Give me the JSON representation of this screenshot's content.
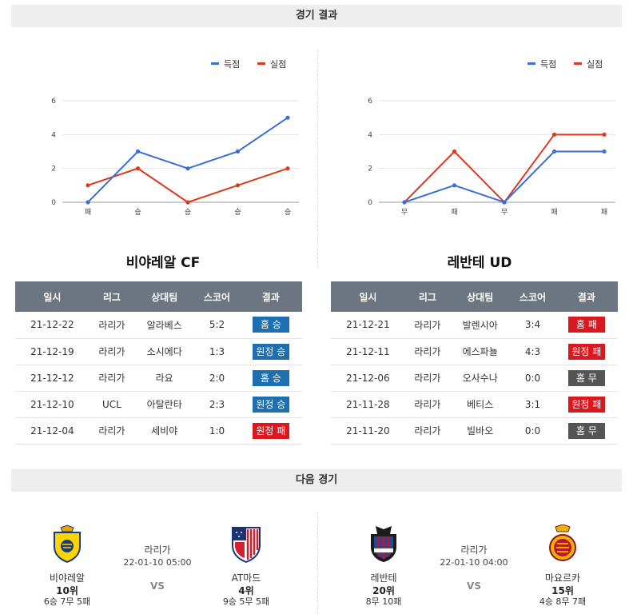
{
  "section_results": "경기 결과",
  "section_next": "다음 경기",
  "legend": {
    "scored": "득점",
    "conceded": "실점"
  },
  "colors": {
    "scored": "#3a6fd8",
    "conceded": "#db3a1e",
    "win": "#1e6fb0",
    "loss": "#d9191f",
    "draw": "#555555",
    "header_bg": "#6b7680"
  },
  "table_headers": [
    "일시",
    "리그",
    "상대팀",
    "스코어",
    "결과"
  ],
  "chart_data": [
    {
      "type": "line",
      "categories": [
        "패",
        "승",
        "승",
        "승",
        "승"
      ],
      "ylim": [
        0,
        6
      ],
      "yticks": [
        0,
        2,
        4,
        6
      ],
      "grid": true,
      "legend_position": "top-right",
      "series": [
        {
          "name": "득점",
          "values": [
            0,
            3,
            2,
            3,
            5
          ]
        },
        {
          "name": "실점",
          "values": [
            1,
            2,
            0,
            1,
            2
          ]
        }
      ]
    },
    {
      "type": "line",
      "categories": [
        "무",
        "패",
        "무",
        "패",
        "패"
      ],
      "ylim": [
        0,
        6
      ],
      "yticks": [
        0,
        2,
        4,
        6
      ],
      "grid": true,
      "legend_position": "top-right",
      "series": [
        {
          "name": "득점",
          "values": [
            0,
            1,
            0,
            3,
            3
          ]
        },
        {
          "name": "실점",
          "values": [
            0,
            3,
            0,
            4,
            4
          ]
        }
      ]
    }
  ],
  "left": {
    "team_title": "비야레알 CF",
    "rows": [
      {
        "date": "21-12-22",
        "league": "라리가",
        "opponent": "알라베스",
        "score": "5:2",
        "result": "홈 승",
        "kind": "win"
      },
      {
        "date": "21-12-19",
        "league": "라리가",
        "opponent": "소시에다",
        "score": "1:3",
        "result": "원정 승",
        "kind": "win"
      },
      {
        "date": "21-12-12",
        "league": "라리가",
        "opponent": "라요",
        "score": "2:0",
        "result": "홈 승",
        "kind": "win"
      },
      {
        "date": "21-12-10",
        "league": "UCL",
        "opponent": "아탈란타",
        "score": "2:3",
        "result": "원정 승",
        "kind": "win"
      },
      {
        "date": "21-12-04",
        "league": "라리가",
        "opponent": "세비야",
        "score": "1:0",
        "result": "원정 패",
        "kind": "loss"
      }
    ]
  },
  "right": {
    "team_title": "레반테 UD",
    "rows": [
      {
        "date": "21-12-21",
        "league": "라리가",
        "opponent": "발렌시아",
        "score": "3:4",
        "result": "홈 패",
        "kind": "loss"
      },
      {
        "date": "21-12-11",
        "league": "라리가",
        "opponent": "에스파뇰",
        "score": "4:3",
        "result": "원정 패",
        "kind": "loss"
      },
      {
        "date": "21-12-06",
        "league": "라리가",
        "opponent": "오사수나",
        "score": "0:0",
        "result": "홈 무",
        "kind": "draw"
      },
      {
        "date": "21-11-28",
        "league": "라리가",
        "opponent": "베티스",
        "score": "3:1",
        "result": "원정 패",
        "kind": "loss"
      },
      {
        "date": "21-11-20",
        "league": "라리가",
        "opponent": "빌바오",
        "score": "0:0",
        "result": "홈 무",
        "kind": "draw"
      }
    ]
  },
  "next_left": {
    "league": "라리가",
    "datetime": "22-01-10 05:00",
    "vs": "VS",
    "home": {
      "name": "비야레알",
      "rank": "10위",
      "record": "6승 7무 5패",
      "logo": "villarreal-crest"
    },
    "away": {
      "name": "AT마드",
      "rank": "4위",
      "record": "9승 5무 5패",
      "logo": "atletico-crest"
    }
  },
  "next_right": {
    "league": "라리가",
    "datetime": "22-01-10 04:00",
    "vs": "VS",
    "home": {
      "name": "레반테",
      "rank": "20위",
      "record": "8무 10패",
      "logo": "levante-crest"
    },
    "away": {
      "name": "마요르카",
      "rank": "15위",
      "record": "4승 8무 7패",
      "logo": "mallorca-crest"
    }
  }
}
